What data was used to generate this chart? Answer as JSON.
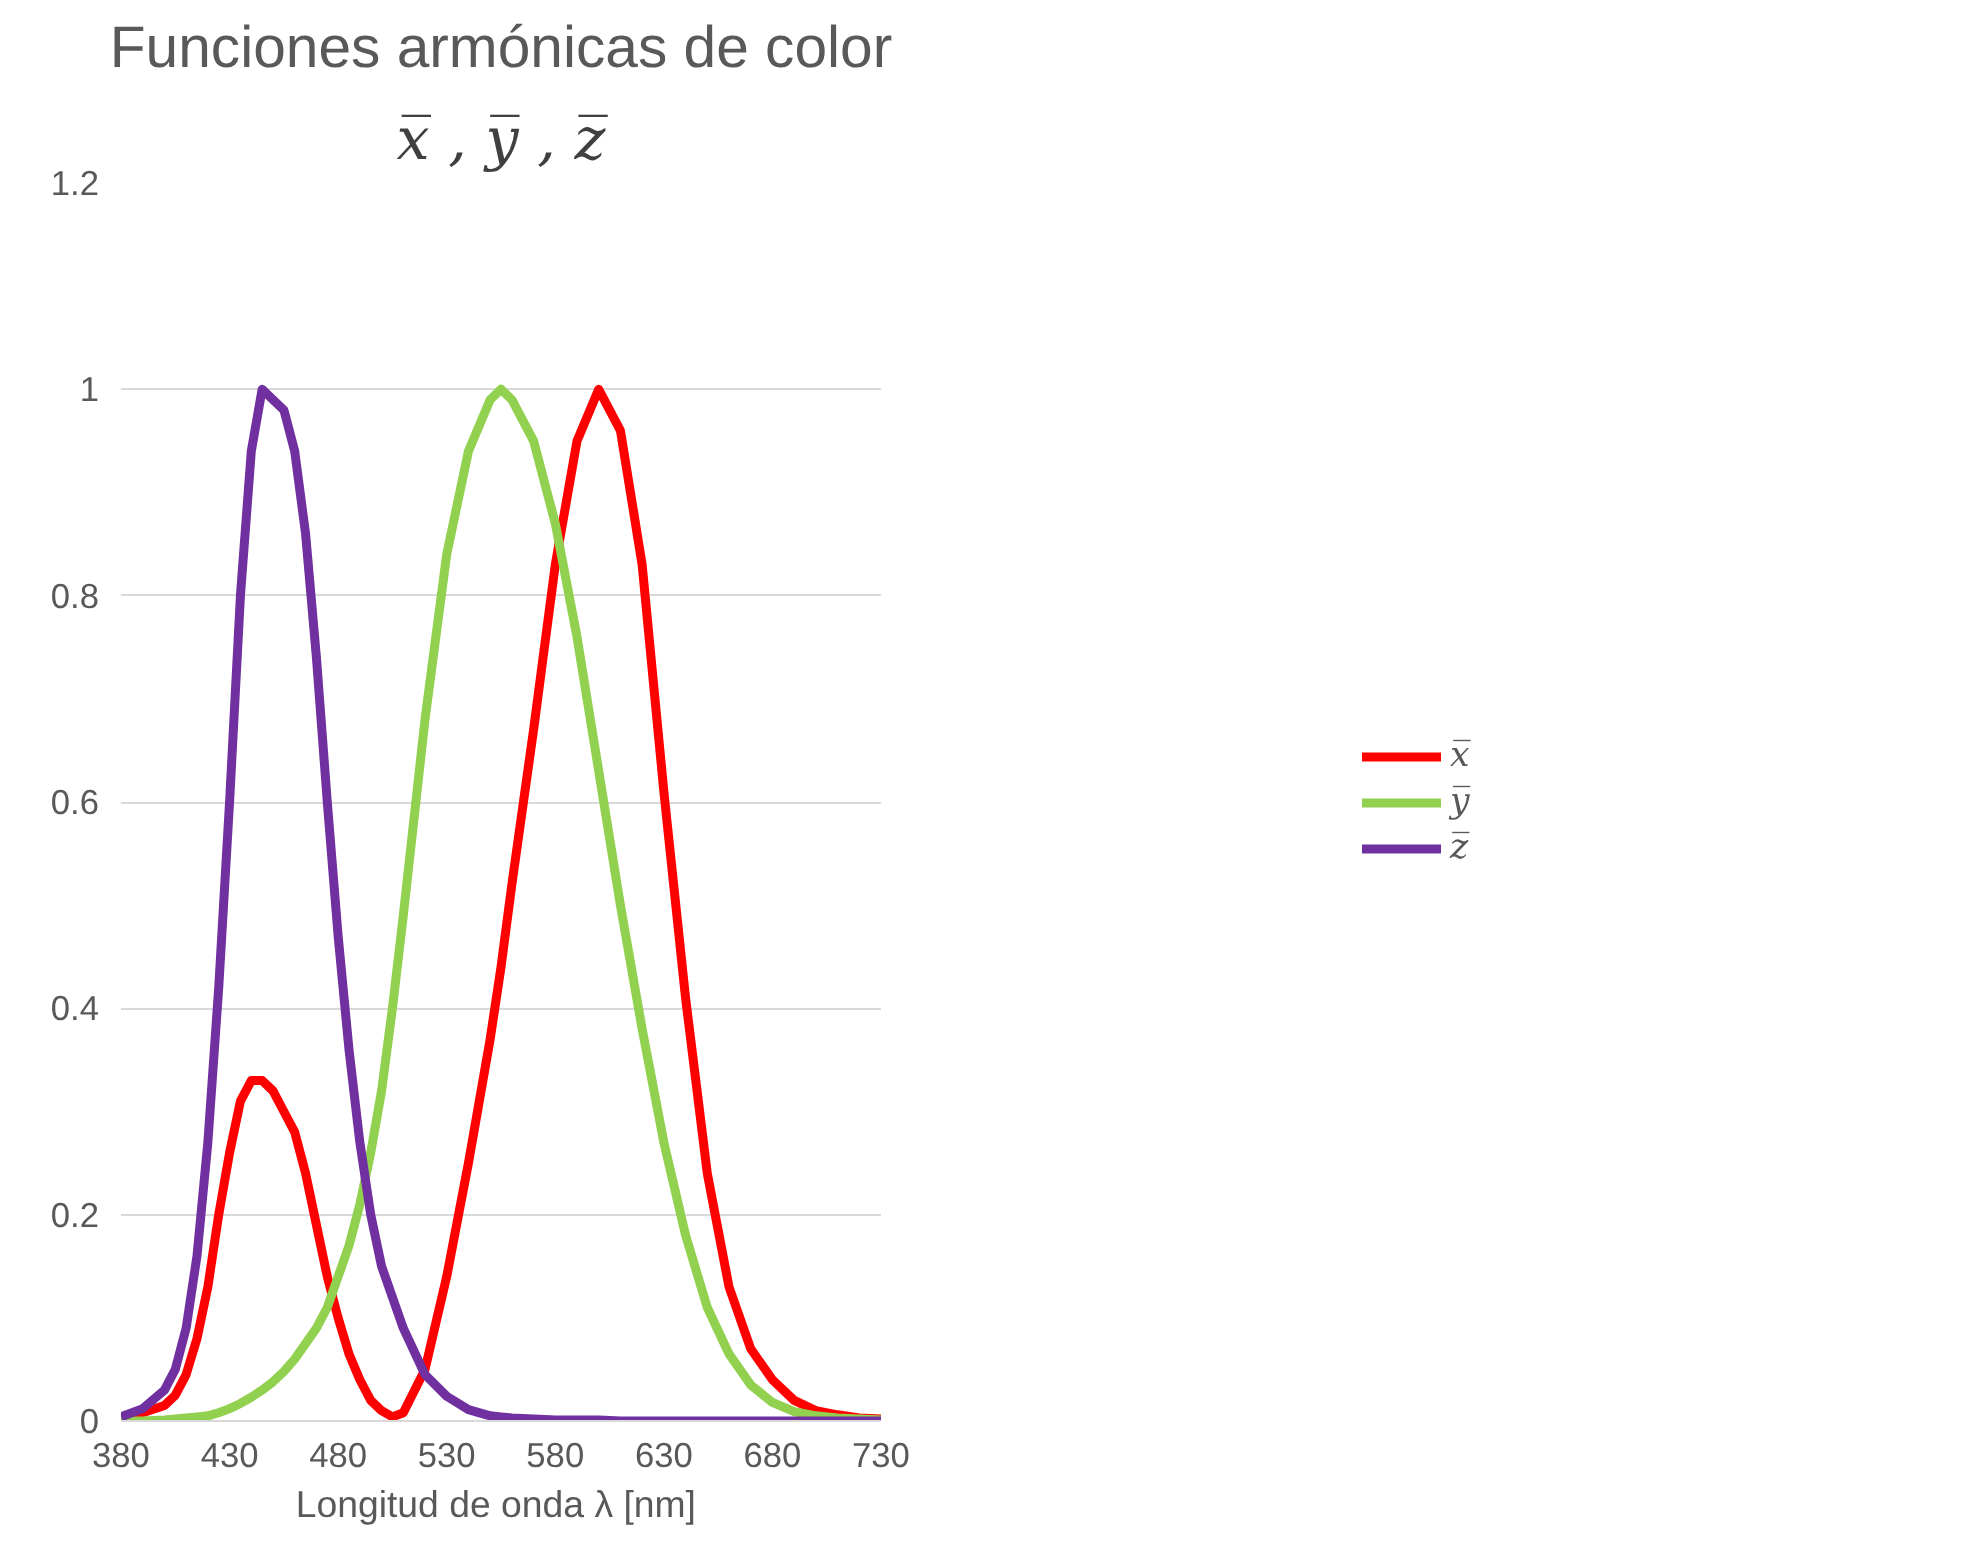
{
  "chart_data": {
    "type": "line",
    "title": "Funciones armónicas de color",
    "subtitle": "x̅ , y̅ , z̅",
    "xlabel": "Longitud de onda  λ [nm]",
    "x": [
      380,
      390,
      400,
      405,
      410,
      415,
      420,
      425,
      430,
      435,
      440,
      445,
      450,
      455,
      460,
      465,
      470,
      475,
      480,
      485,
      490,
      495,
      500,
      505,
      510,
      520,
      530,
      540,
      550,
      555,
      560,
      570,
      580,
      590,
      600,
      610,
      620,
      630,
      640,
      650,
      660,
      670,
      680,
      690,
      700,
      710,
      720,
      730
    ],
    "series": [
      {
        "name": "x̅",
        "color": "#ff0000",
        "values": [
          0.004,
          0.008,
          0.015,
          0.025,
          0.045,
          0.08,
          0.13,
          0.2,
          0.26,
          0.31,
          0.33,
          0.33,
          0.32,
          0.3,
          0.28,
          0.24,
          0.19,
          0.14,
          0.1,
          0.065,
          0.04,
          0.02,
          0.01,
          0.004,
          0.008,
          0.05,
          0.14,
          0.25,
          0.37,
          0.44,
          0.52,
          0.67,
          0.83,
          0.95,
          1.0,
          0.96,
          0.83,
          0.61,
          0.41,
          0.24,
          0.13,
          0.07,
          0.04,
          0.02,
          0.01,
          0.006,
          0.003,
          0.002
        ]
      },
      {
        "name": "y̅",
        "color": "#92d050",
        "values": [
          0.0,
          0.0,
          0.001,
          0.002,
          0.003,
          0.004,
          0.005,
          0.008,
          0.012,
          0.017,
          0.023,
          0.03,
          0.038,
          0.048,
          0.06,
          0.075,
          0.09,
          0.11,
          0.14,
          0.17,
          0.21,
          0.26,
          0.32,
          0.4,
          0.49,
          0.68,
          0.84,
          0.94,
          0.99,
          1.0,
          0.99,
          0.95,
          0.87,
          0.76,
          0.63,
          0.5,
          0.38,
          0.27,
          0.18,
          0.11,
          0.065,
          0.035,
          0.018,
          0.009,
          0.005,
          0.003,
          0.002,
          0.001
        ]
      },
      {
        "name": "z̅",
        "color": "#7030a0",
        "values": [
          0.004,
          0.012,
          0.03,
          0.05,
          0.09,
          0.16,
          0.27,
          0.42,
          0.6,
          0.8,
          0.94,
          1.0,
          0.99,
          0.98,
          0.94,
          0.86,
          0.74,
          0.6,
          0.47,
          0.36,
          0.27,
          0.2,
          0.15,
          0.12,
          0.09,
          0.045,
          0.024,
          0.011,
          0.005,
          0.004,
          0.003,
          0.002,
          0.001,
          0.001,
          0.001,
          0.0,
          0.0,
          0.0,
          0.0,
          0.0,
          0.0,
          0.0,
          0.0,
          0.0,
          0.0,
          0.0,
          0.0,
          0.0
        ]
      }
    ],
    "xlim": [
      380,
      730
    ],
    "xticks": [
      380,
      430,
      480,
      530,
      580,
      630,
      680,
      730
    ],
    "ylim": [
      0,
      1.2
    ],
    "yticks": [
      0,
      0.2,
      0.4,
      0.6,
      0.8,
      1,
      1.2
    ],
    "grid": "y",
    "legend": "right",
    "marker": "none",
    "line_style": "solid"
  }
}
